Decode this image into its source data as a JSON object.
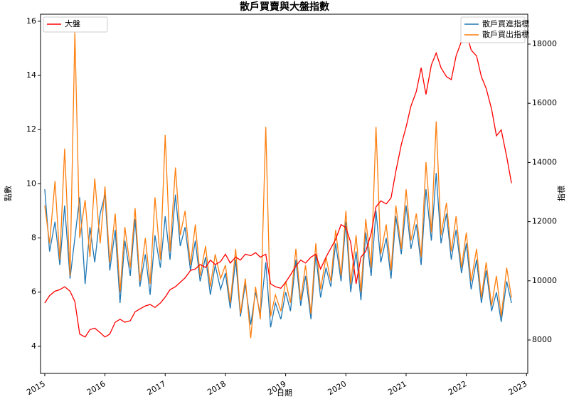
{
  "chart_data": {
    "type": "line",
    "title": "散戶買賣與大盤指數",
    "xlabel": "日期",
    "ylabel": "點數",
    "y2label": "指標",
    "x": [
      2015.0,
      2015.08,
      2015.17,
      2015.25,
      2015.33,
      2015.42,
      2015.5,
      2015.58,
      2015.67,
      2015.75,
      2015.83,
      2015.92,
      2016.0,
      2016.08,
      2016.17,
      2016.25,
      2016.33,
      2016.42,
      2016.5,
      2016.58,
      2016.67,
      2016.75,
      2016.83,
      2016.92,
      2017.0,
      2017.08,
      2017.17,
      2017.25,
      2017.33,
      2017.42,
      2017.5,
      2017.58,
      2017.67,
      2017.75,
      2017.83,
      2017.92,
      2018.0,
      2018.08,
      2018.17,
      2018.25,
      2018.33,
      2018.42,
      2018.5,
      2018.58,
      2018.67,
      2018.75,
      2018.83,
      2018.92,
      2019.0,
      2019.08,
      2019.17,
      2019.25,
      2019.33,
      2019.42,
      2019.5,
      2019.58,
      2019.67,
      2019.75,
      2019.83,
      2019.92,
      2020.0,
      2020.08,
      2020.17,
      2020.25,
      2020.33,
      2020.42,
      2020.5,
      2020.58,
      2020.67,
      2020.75,
      2020.83,
      2020.92,
      2021.0,
      2021.08,
      2021.17,
      2021.25,
      2021.33,
      2021.42,
      2021.5,
      2021.58,
      2021.67,
      2021.75,
      2021.83,
      2021.92,
      2022.0,
      2022.08,
      2022.17,
      2022.25,
      2022.33,
      2022.42,
      2022.5,
      2022.58,
      2022.67,
      2022.75
    ],
    "series": [
      {
        "name": "散戶買進指標",
        "color": "#1f77b4",
        "axis": "y",
        "values": [
          9.8,
          7.5,
          8.6,
          7.0,
          9.2,
          6.5,
          8.0,
          9.5,
          6.3,
          8.4,
          7.1,
          8.9,
          9.6,
          6.8,
          8.3,
          5.6,
          7.9,
          6.6,
          8.7,
          6.2,
          7.4,
          5.9,
          8.1,
          6.9,
          8.8,
          7.2,
          9.6,
          7.7,
          8.4,
          6.8,
          7.9,
          6.4,
          7.3,
          5.9,
          7.0,
          6.1,
          6.7,
          5.4,
          7.2,
          5.1,
          6.3,
          4.8,
          6.0,
          5.2,
          7.1,
          4.7,
          5.6,
          5.0,
          6.0,
          5.3,
          7.2,
          5.5,
          6.6,
          5.0,
          7.4,
          5.8,
          6.9,
          6.2,
          7.8,
          6.4,
          8.6,
          6.0,
          7.5,
          5.7,
          8.2,
          6.6,
          9.0,
          7.1,
          8.0,
          6.5,
          8.8,
          7.4,
          9.2,
          7.6,
          8.5,
          7.0,
          9.8,
          7.9,
          10.4,
          7.8,
          8.9,
          7.2,
          8.3,
          6.7,
          7.8,
          6.1,
          7.2,
          5.6,
          6.8,
          5.3,
          6.0,
          4.9,
          6.4,
          5.6
        ]
      },
      {
        "name": "散戶買出指標",
        "color": "#ff7f0e",
        "axis": "y",
        "values": [
          9.2,
          7.8,
          10.1,
          7.2,
          11.3,
          6.6,
          15.6,
          8.0,
          9.4,
          7.3,
          10.2,
          7.8,
          9.9,
          7.1,
          8.9,
          6.0,
          8.4,
          6.9,
          9.1,
          6.4,
          8.0,
          6.3,
          9.5,
          7.2,
          11.8,
          7.5,
          10.6,
          8.1,
          9.0,
          7.0,
          8.5,
          6.6,
          7.7,
          6.2,
          7.4,
          6.5,
          7.0,
          5.6,
          7.6,
          5.2,
          6.5,
          4.3,
          6.2,
          5.0,
          12.1,
          5.1,
          5.9,
          5.3,
          6.4,
          5.6,
          7.6,
          5.7,
          7.0,
          5.2,
          7.8,
          6.1,
          7.3,
          6.4,
          8.3,
          6.6,
          9.0,
          6.3,
          8.1,
          6.0,
          8.7,
          6.9,
          12.1,
          7.4,
          8.5,
          6.8,
          9.2,
          7.6,
          9.8,
          7.9,
          8.9,
          7.3,
          10.8,
          8.2,
          12.3,
          8.1,
          9.3,
          7.5,
          8.8,
          6.9,
          8.2,
          6.4,
          7.6,
          5.8,
          7.1,
          5.5,
          6.6,
          5.1,
          6.9,
          5.8
        ]
      },
      {
        "name": "大盤",
        "color": "#ff0000",
        "axis": "y2",
        "values": [
          9250,
          9500,
          9650,
          9700,
          9800,
          9650,
          9300,
          8200,
          8100,
          8350,
          8400,
          8250,
          8100,
          8200,
          8600,
          8700,
          8600,
          8650,
          8950,
          9050,
          9150,
          9200,
          9100,
          9250,
          9450,
          9700,
          9800,
          9950,
          10100,
          10350,
          10400,
          10550,
          10450,
          10700,
          10550,
          10650,
          10900,
          10600,
          10800,
          10700,
          10900,
          10850,
          10950,
          10800,
          10900,
          9900,
          9800,
          9750,
          9950,
          10200,
          10500,
          10700,
          10600,
          10800,
          10900,
          10400,
          10800,
          11100,
          11400,
          11900,
          11800,
          11300,
          9900,
          10800,
          11000,
          11600,
          12500,
          12700,
          12600,
          12800,
          13700,
          14600,
          15200,
          15900,
          16400,
          17200,
          16300,
          17300,
          17700,
          17200,
          16900,
          16800,
          17600,
          18100,
          18400,
          17800,
          17600,
          16900,
          16500,
          15800,
          14900,
          15100,
          14200,
          13300
        ]
      }
    ],
    "xlim": [
      2014.93,
      2023.02
    ],
    "xticks": [
      2015,
      2016,
      2017,
      2018,
      2019,
      2020,
      2021,
      2022,
      2023
    ],
    "ylim": [
      3.0,
      16.26
    ],
    "yticks": [
      4,
      6,
      8,
      10,
      12,
      14,
      16
    ],
    "y2lim": [
      6870,
      19010
    ],
    "y2ticks": [
      8000,
      10000,
      12000,
      14000,
      16000,
      18000
    ],
    "legend": {
      "y": "upper right",
      "y2": "upper left"
    }
  }
}
